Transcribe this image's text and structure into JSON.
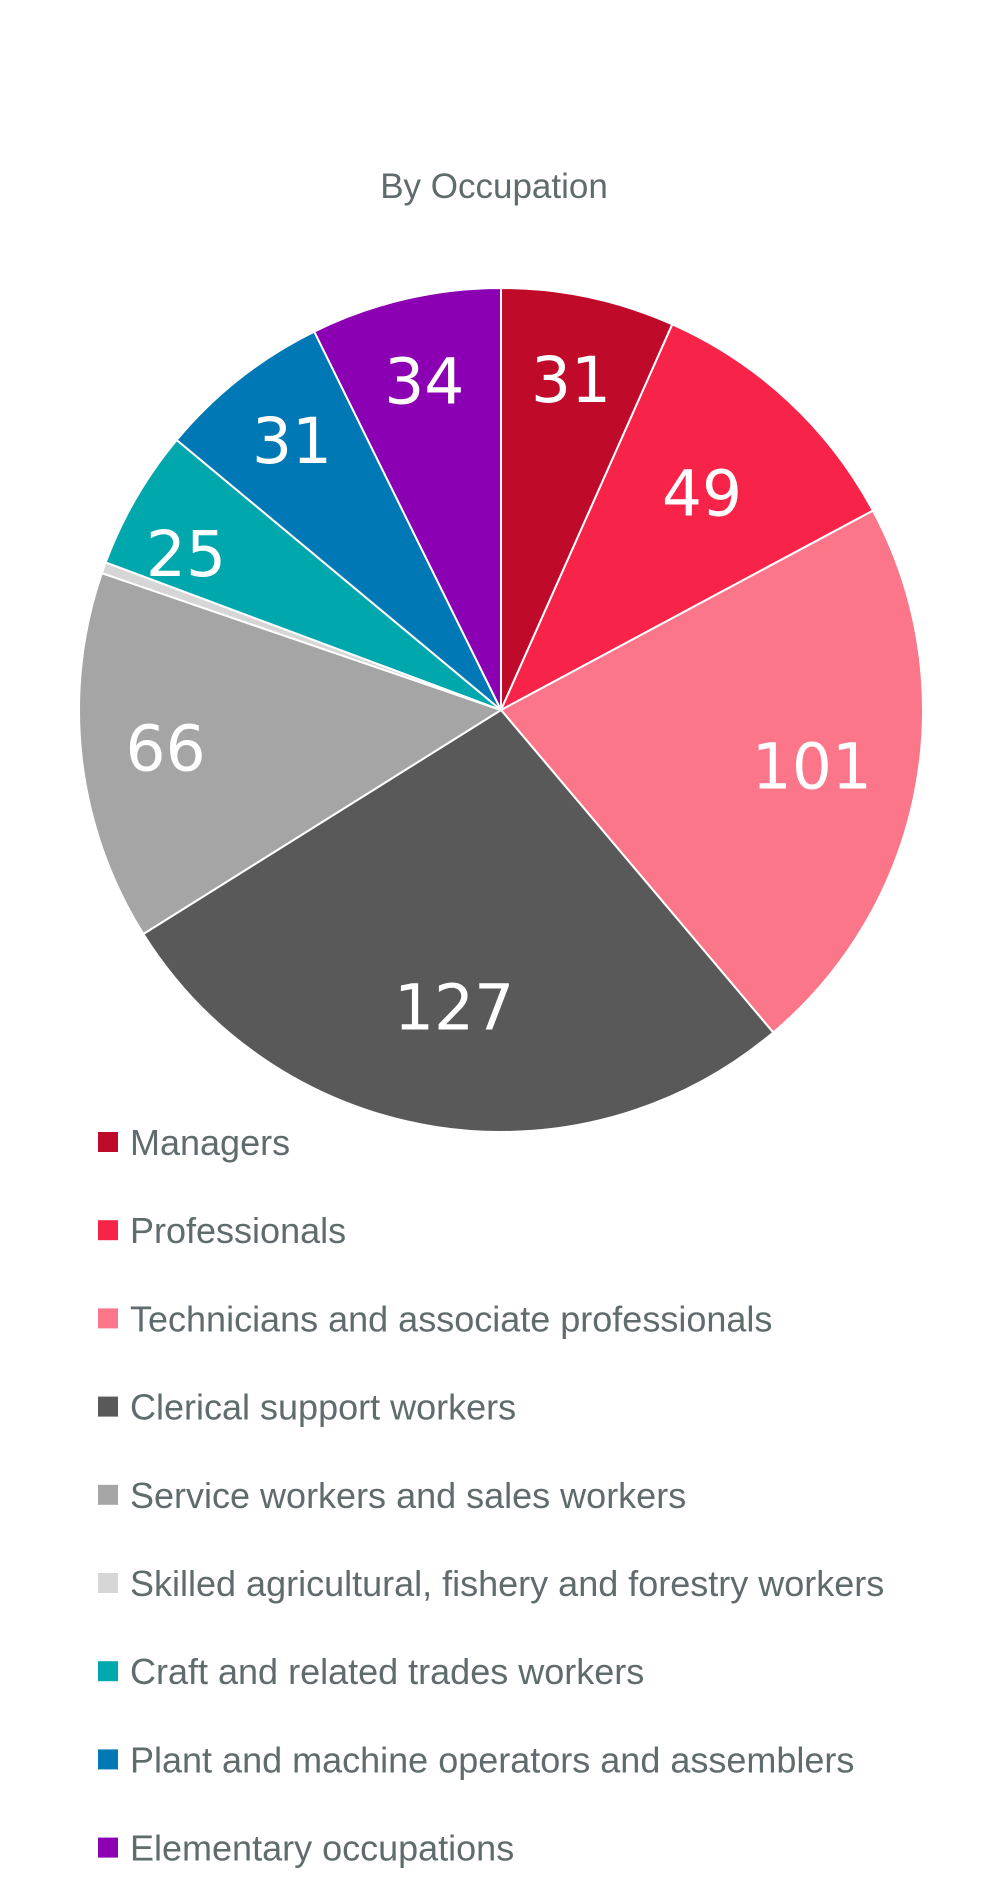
{
  "chart_data": {
    "type": "pie",
    "title": "By Occupation",
    "categories": [
      "Managers",
      "Professionals",
      "Technicians and associate professionals",
      "Clerical support workers",
      "Service workers and sales workers",
      "Skilled agricultural, fishery and forestry workers",
      "Craft and related trades workers",
      "Plant and machine operators and assemblers",
      "Elementary occupations"
    ],
    "values": [
      31,
      49,
      101,
      127,
      66,
      2,
      25,
      31,
      34
    ],
    "colors": [
      "#c00a2a",
      "#f72349",
      "#fb7689",
      "#595959",
      "#a5a5a5",
      "#d6d6d6",
      "#00a8ae",
      "#0078b5",
      "#8b00b2"
    ],
    "label_colors": [
      "#ffffff",
      "#ffffff",
      "#ffffff",
      "#ffffff",
      "#ffffff",
      "#000000",
      "#000000",
      "#ffffff",
      "#ffffff"
    ],
    "start_angle": "12 o'clock",
    "direction": "clockwise",
    "legend_position": "bottom"
  }
}
